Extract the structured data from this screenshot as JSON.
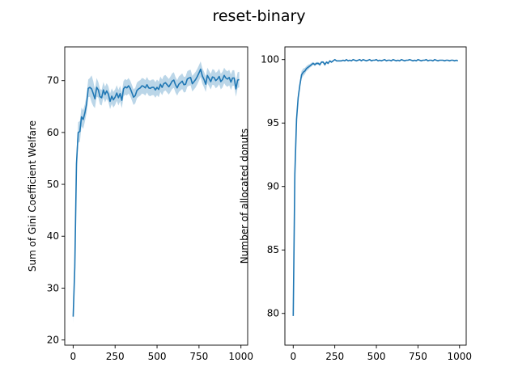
{
  "figure": {
    "title": "reset-binary"
  },
  "colors": {
    "line": "#1f77b4",
    "band": "#1f77b4"
  },
  "chart_data": [
    {
      "type": "line",
      "title": "",
      "xlabel": "",
      "ylabel": "Sum of Gini Coefficient Welfare",
      "xlim": [
        -50,
        1040
      ],
      "ylim": [
        19,
        76.5
      ],
      "xticks": [
        0,
        250,
        500,
        750,
        1000
      ],
      "yticks": [
        20,
        30,
        40,
        50,
        60,
        70
      ],
      "grid": false,
      "series": [
        {
          "x": [
            0,
            10,
            20,
            30,
            40,
            50,
            60,
            70,
            80,
            90,
            100,
            110,
            120,
            130,
            140,
            150,
            160,
            170,
            180,
            190,
            200,
            210,
            220,
            230,
            240,
            250,
            260,
            270,
            280,
            290,
            300,
            310,
            320,
            330,
            340,
            350,
            360,
            370,
            380,
            390,
            400,
            410,
            420,
            430,
            440,
            450,
            460,
            470,
            480,
            490,
            500,
            510,
            520,
            530,
            540,
            550,
            560,
            570,
            580,
            590,
            600,
            610,
            620,
            630,
            640,
            650,
            660,
            670,
            680,
            690,
            700,
            710,
            720,
            730,
            740,
            750,
            760,
            770,
            780,
            790,
            800,
            810,
            820,
            830,
            840,
            850,
            860,
            870,
            880,
            890,
            900,
            910,
            920,
            930,
            940,
            950,
            960,
            970,
            980,
            990
          ],
          "values": [
            24.5,
            34,
            54,
            60,
            60.2,
            63,
            62.5,
            63.8,
            65.5,
            68.5,
            68.7,
            68.4,
            67.5,
            66.5,
            68.7,
            68.2,
            66.9,
            66.7,
            68.2,
            67.3,
            68.0,
            67.4,
            66.0,
            67.0,
            66.3,
            66.8,
            67.6,
            66.7,
            67.5,
            66.2,
            68.4,
            68.8,
            68.6,
            69.0,
            68.5,
            67.7,
            66.8,
            67.1,
            68.1,
            68.4,
            68.6,
            69.0,
            68.9,
            68.6,
            69.2,
            68.6,
            68.5,
            68.7,
            68.7,
            68.2,
            68.7,
            68.3,
            69.3,
            68.7,
            69.4,
            69.6,
            69.2,
            68.8,
            69.3,
            69.9,
            70.1,
            69.2,
            68.6,
            69.3,
            69.6,
            69.9,
            69.2,
            69.3,
            70.3,
            70.5,
            70.6,
            69.4,
            69.8,
            70.2,
            70.8,
            71.5,
            72.2,
            70.9,
            70.2,
            69.3,
            71.0,
            70.4,
            69.8,
            70.7,
            70.6,
            70.0,
            70.3,
            70.8,
            69.8,
            70.2,
            71.0,
            70.5,
            70.3,
            70.6,
            69.7,
            70.5,
            70.5,
            68.4,
            70.1,
            70.2
          ],
          "ci_halfwidth": [
            1.2,
            2.0,
            2.2,
            2.0,
            2.0,
            1.8,
            1.8,
            1.7,
            1.7,
            1.7,
            1.8,
            2.6,
            2.4,
            1.8,
            1.8,
            1.5,
            1.5,
            1.5,
            1.5,
            1.5,
            1.5,
            1.5,
            1.5,
            1.5,
            1.5,
            1.5,
            1.5,
            1.5,
            1.5,
            1.5,
            1.5,
            1.5,
            1.5,
            1.5,
            1.5,
            1.5,
            1.5,
            1.5,
            1.5,
            1.5,
            1.5,
            1.5,
            1.5,
            1.5,
            1.5,
            1.5,
            1.5,
            1.5,
            1.5,
            1.5,
            1.5,
            1.5,
            1.5,
            1.5,
            1.5,
            1.5,
            1.5,
            1.5,
            1.5,
            1.5,
            1.5,
            1.5,
            1.5,
            1.5,
            1.5,
            1.5,
            1.5,
            1.5,
            1.5,
            1.5,
            1.5,
            1.5,
            1.5,
            1.5,
            1.5,
            1.5,
            1.5,
            1.5,
            1.5,
            1.5,
            1.5,
            1.5,
            1.5,
            1.5,
            1.5,
            1.5,
            1.5,
            1.5,
            1.5,
            1.5,
            1.5,
            1.5,
            1.5,
            1.5,
            1.5,
            1.5,
            1.5,
            1.5,
            1.5,
            1.5
          ]
        }
      ]
    },
    {
      "type": "line",
      "title": "",
      "xlabel": "",
      "ylabel": "Number of allocated donuts",
      "xlim": [
        -50,
        1040
      ],
      "ylim": [
        77.5,
        101.0
      ],
      "xticks": [
        0,
        250,
        500,
        750,
        1000
      ],
      "yticks": [
        80,
        85,
        90,
        95,
        100
      ],
      "grid": false,
      "series": [
        {
          "x": [
            0,
            10,
            20,
            30,
            40,
            50,
            60,
            70,
            80,
            90,
            100,
            110,
            120,
            130,
            140,
            150,
            160,
            170,
            180,
            190,
            200,
            210,
            220,
            230,
            240,
            250,
            260,
            270,
            280,
            290,
            300,
            310,
            320,
            330,
            340,
            350,
            360,
            370,
            380,
            390,
            400,
            410,
            420,
            430,
            440,
            450,
            460,
            470,
            480,
            490,
            500,
            510,
            520,
            530,
            540,
            550,
            560,
            570,
            580,
            590,
            600,
            610,
            620,
            630,
            640,
            650,
            660,
            670,
            680,
            690,
            700,
            710,
            720,
            730,
            740,
            750,
            760,
            770,
            780,
            790,
            800,
            810,
            820,
            830,
            840,
            850,
            860,
            870,
            880,
            890,
            900,
            910,
            920,
            930,
            940,
            950,
            960,
            970,
            980,
            990
          ],
          "values": [
            79.8,
            91,
            95.3,
            97.0,
            98.0,
            98.8,
            99.0,
            99.1,
            99.3,
            99.4,
            99.5,
            99.6,
            99.7,
            99.6,
            99.7,
            99.7,
            99.6,
            99.8,
            99.8,
            99.6,
            99.8,
            99.7,
            99.9,
            99.8,
            99.9,
            100.0,
            99.9,
            99.9,
            99.9,
            99.9,
            99.95,
            99.9,
            100.0,
            99.9,
            99.95,
            99.9,
            100.0,
            99.95,
            99.9,
            99.95,
            100.0,
            99.9,
            100.0,
            99.95,
            99.9,
            99.95,
            100.0,
            99.9,
            99.95,
            99.95,
            100.0,
            99.9,
            99.95,
            99.9,
            99.95,
            100.0,
            99.9,
            99.95,
            99.95,
            99.9,
            100.0,
            99.95,
            99.9,
            99.95,
            99.9,
            100.0,
            99.95,
            99.9,
            99.95,
            99.95,
            100.0,
            99.95,
            99.9,
            99.95,
            99.9,
            100.0,
            99.95,
            99.9,
            99.95,
            99.95,
            100.0,
            99.9,
            99.95,
            99.95,
            99.9,
            100.0,
            99.95,
            99.9,
            99.95,
            99.95,
            99.95,
            99.9,
            99.95,
            99.95,
            99.9,
            99.95,
            99.95,
            99.9,
            99.95,
            99.9
          ],
          "ci_halfwidth": [
            0.2,
            0.3,
            0.3,
            0.3,
            0.3,
            0.3,
            0.3,
            0.25,
            0.2,
            0.2,
            0.15,
            0.15,
            0.1,
            0.12,
            0.1,
            0.1,
            0.12,
            0.08,
            0.08,
            0.12,
            0.08,
            0.1,
            0.05,
            0.08,
            0.05,
            0.03,
            0.05,
            0.05,
            0.05,
            0.05,
            0.03,
            0.05,
            0.02,
            0.05,
            0.03,
            0.05,
            0.02,
            0.03,
            0.05,
            0.03,
            0.02,
            0.05,
            0.02,
            0.03,
            0.05,
            0.03,
            0.02,
            0.05,
            0.03,
            0.03,
            0.02,
            0.05,
            0.03,
            0.05,
            0.03,
            0.02,
            0.05,
            0.03,
            0.03,
            0.05,
            0.02,
            0.03,
            0.05,
            0.03,
            0.05,
            0.02,
            0.03,
            0.05,
            0.03,
            0.03,
            0.02,
            0.03,
            0.05,
            0.03,
            0.05,
            0.02,
            0.03,
            0.05,
            0.03,
            0.03,
            0.02,
            0.05,
            0.03,
            0.03,
            0.05,
            0.02,
            0.03,
            0.05,
            0.03,
            0.03,
            0.03,
            0.05,
            0.03,
            0.03,
            0.05,
            0.03,
            0.03,
            0.05,
            0.03,
            0.05
          ]
        }
      ]
    }
  ]
}
